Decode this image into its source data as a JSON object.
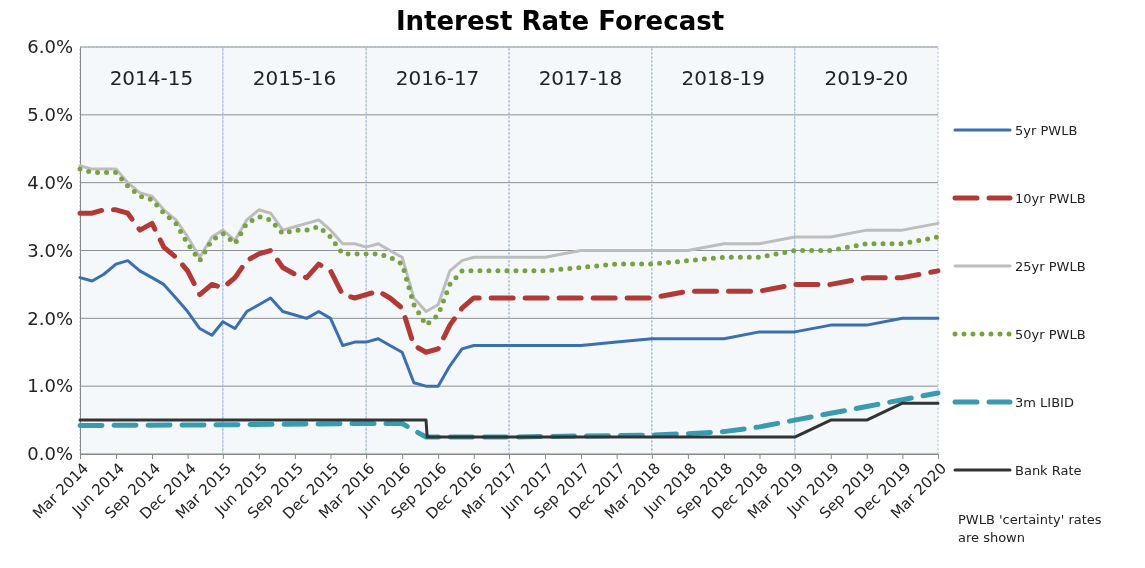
{
  "chart_data": {
    "type": "line",
    "title": "Interest Rate Forecast",
    "xlim": [
      "2014-03",
      "2020-03"
    ],
    "xticks": [
      {
        "value": "2014-03",
        "label": "Mar 2014"
      },
      {
        "value": "2014-06",
        "label": "Jun 2014"
      },
      {
        "value": "2014-09",
        "label": "Sep 2014"
      },
      {
        "value": "2014-12",
        "label": "Dec 2014"
      },
      {
        "value": "2015-03",
        "label": "Mar 2015"
      },
      {
        "value": "2015-06",
        "label": "Jun 2015"
      },
      {
        "value": "2015-09",
        "label": "Sep 2015"
      },
      {
        "value": "2015-12",
        "label": "Dec 2015"
      },
      {
        "value": "2016-03",
        "label": "Mar 2016"
      },
      {
        "value": "2016-06",
        "label": "Jun 2016"
      },
      {
        "value": "2016-09",
        "label": "Sep 2016"
      },
      {
        "value": "2016-12",
        "label": "Dec 2016"
      },
      {
        "value": "2017-03",
        "label": "Mar 2017"
      },
      {
        "value": "2017-06",
        "label": "Jun 2017"
      },
      {
        "value": "2017-09",
        "label": "Sep 2017"
      },
      {
        "value": "2017-12",
        "label": "Dec 2017"
      },
      {
        "value": "2018-03",
        "label": "Mar 2018"
      },
      {
        "value": "2018-06",
        "label": "Jun 2018"
      },
      {
        "value": "2018-09",
        "label": "Sep 2018"
      },
      {
        "value": "2018-12",
        "label": "Dec 2018"
      },
      {
        "value": "2019-03",
        "label": "Mar 2019"
      },
      {
        "value": "2019-06",
        "label": "Jun 2019"
      },
      {
        "value": "2019-09",
        "label": "Sep 2019"
      },
      {
        "value": "2019-12",
        "label": "Dec 2019"
      },
      {
        "value": "2020-03",
        "label": "Mar 2020"
      }
    ],
    "ylim": [
      0,
      6
    ],
    "yticks": [
      {
        "value": 0,
        "label": "0.0%"
      },
      {
        "value": 1,
        "label": "1.0%"
      },
      {
        "value": 2,
        "label": "2.0%"
      },
      {
        "value": 3,
        "label": "3.0%"
      },
      {
        "value": 4,
        "label": "4.0%"
      },
      {
        "value": 5,
        "label": "5.0%"
      },
      {
        "value": 6,
        "label": "6.0%"
      }
    ],
    "grid": "y",
    "legend": "right",
    "series": [
      {
        "name": "5yr PWLB",
        "color": "#3a6fb0",
        "line_style": "solid",
        "x": [
          "2014-03",
          "2014-04",
          "2014-05",
          "2014-06",
          "2014-07",
          "2014-08",
          "2014-09",
          "2014-10",
          "2014-11",
          "2014-12",
          "2015-01",
          "2015-02",
          "2015-03",
          "2015-04",
          "2015-05",
          "2015-06",
          "2015-07",
          "2015-08",
          "2015-09",
          "2015-10",
          "2015-11",
          "2015-12",
          "2016-01",
          "2016-02",
          "2016-03",
          "2016-04",
          "2016-05",
          "2016-06",
          "2016-07",
          "2016-08",
          "2016-09",
          "2016-10",
          "2016-11",
          "2016-12",
          "2017-03",
          "2017-06",
          "2017-09",
          "2017-12",
          "2018-03",
          "2018-06",
          "2018-09",
          "2018-12",
          "2019-03",
          "2019-06",
          "2019-09",
          "2019-12",
          "2020-03"
        ],
        "values": [
          2.6,
          2.55,
          2.65,
          2.8,
          2.85,
          2.7,
          2.6,
          2.5,
          2.3,
          2.1,
          1.85,
          1.75,
          1.95,
          1.85,
          2.1,
          2.2,
          2.3,
          2.1,
          2.05,
          2.0,
          2.1,
          2.0,
          1.6,
          1.65,
          1.65,
          1.7,
          1.6,
          1.5,
          1.05,
          1.0,
          1.0,
          1.3,
          1.55,
          1.6,
          1.6,
          1.6,
          1.6,
          1.65,
          1.7,
          1.7,
          1.7,
          1.8,
          1.8,
          1.9,
          1.9,
          2.0,
          2.0
        ]
      },
      {
        "name": "10yr PWLB",
        "color": "#b23a36",
        "line_style": "dashed",
        "x": [
          "2014-03",
          "2014-04",
          "2014-05",
          "2014-06",
          "2014-07",
          "2014-08",
          "2014-09",
          "2014-10",
          "2014-11",
          "2014-12",
          "2015-01",
          "2015-02",
          "2015-03",
          "2015-04",
          "2015-05",
          "2015-06",
          "2015-07",
          "2015-08",
          "2015-09",
          "2015-10",
          "2015-11",
          "2015-12",
          "2016-01",
          "2016-02",
          "2016-03",
          "2016-04",
          "2016-05",
          "2016-06",
          "2016-07",
          "2016-08",
          "2016-09",
          "2016-10",
          "2016-11",
          "2016-12",
          "2017-03",
          "2017-06",
          "2017-09",
          "2017-12",
          "2018-03",
          "2018-06",
          "2018-09",
          "2018-12",
          "2019-03",
          "2019-06",
          "2019-09",
          "2019-12",
          "2020-03"
        ],
        "values": [
          3.55,
          3.55,
          3.6,
          3.6,
          3.55,
          3.3,
          3.4,
          3.05,
          2.9,
          2.7,
          2.35,
          2.5,
          2.45,
          2.6,
          2.85,
          2.95,
          3.0,
          2.75,
          2.65,
          2.6,
          2.8,
          2.7,
          2.35,
          2.3,
          2.35,
          2.4,
          2.3,
          2.15,
          1.6,
          1.5,
          1.55,
          1.9,
          2.15,
          2.3,
          2.3,
          2.3,
          2.3,
          2.3,
          2.3,
          2.4,
          2.4,
          2.4,
          2.5,
          2.5,
          2.6,
          2.6,
          2.7
        ]
      },
      {
        "name": "25yr PWLB",
        "color": "#bdbdbd",
        "line_style": "solid",
        "x": [
          "2014-03",
          "2014-04",
          "2014-05",
          "2014-06",
          "2014-07",
          "2014-08",
          "2014-09",
          "2014-10",
          "2014-11",
          "2014-12",
          "2015-01",
          "2015-02",
          "2015-03",
          "2015-04",
          "2015-05",
          "2015-06",
          "2015-07",
          "2015-08",
          "2015-09",
          "2015-10",
          "2015-11",
          "2015-12",
          "2016-01",
          "2016-02",
          "2016-03",
          "2016-04",
          "2016-05",
          "2016-06",
          "2016-07",
          "2016-08",
          "2016-09",
          "2016-10",
          "2016-11",
          "2016-12",
          "2017-03",
          "2017-06",
          "2017-09",
          "2017-12",
          "2018-03",
          "2018-06",
          "2018-09",
          "2018-12",
          "2019-03",
          "2019-06",
          "2019-09",
          "2019-12",
          "2020-03"
        ],
        "values": [
          4.25,
          4.2,
          4.2,
          4.2,
          4.0,
          3.85,
          3.8,
          3.6,
          3.45,
          3.2,
          2.9,
          3.2,
          3.3,
          3.15,
          3.45,
          3.6,
          3.55,
          3.3,
          3.35,
          3.4,
          3.45,
          3.3,
          3.1,
          3.1,
          3.05,
          3.1,
          3.0,
          2.9,
          2.3,
          2.1,
          2.2,
          2.7,
          2.85,
          2.9,
          2.9,
          2.9,
          3.0,
          3.0,
          3.0,
          3.0,
          3.1,
          3.1,
          3.2,
          3.2,
          3.3,
          3.3,
          3.4
        ]
      },
      {
        "name": "50yr PWLB",
        "color": "#77a33f",
        "line_style": "dotted",
        "x": [
          "2014-03",
          "2014-04",
          "2014-05",
          "2014-06",
          "2014-07",
          "2014-08",
          "2014-09",
          "2014-10",
          "2014-11",
          "2014-12",
          "2015-01",
          "2015-02",
          "2015-03",
          "2015-04",
          "2015-05",
          "2015-06",
          "2015-07",
          "2015-08",
          "2015-09",
          "2015-10",
          "2015-11",
          "2015-12",
          "2016-01",
          "2016-02",
          "2016-03",
          "2016-04",
          "2016-05",
          "2016-06",
          "2016-07",
          "2016-08",
          "2016-09",
          "2016-10",
          "2016-11",
          "2016-12",
          "2017-03",
          "2017-06",
          "2017-09",
          "2017-12",
          "2018-03",
          "2018-06",
          "2018-09",
          "2018-12",
          "2019-03",
          "2019-06",
          "2019-09",
          "2019-12",
          "2020-03"
        ],
        "values": [
          4.2,
          4.15,
          4.15,
          4.15,
          3.95,
          3.8,
          3.75,
          3.55,
          3.4,
          3.1,
          2.85,
          3.15,
          3.25,
          3.1,
          3.4,
          3.5,
          3.45,
          3.25,
          3.3,
          3.3,
          3.35,
          3.2,
          2.95,
          2.95,
          2.95,
          2.95,
          2.9,
          2.8,
          2.2,
          1.9,
          2.05,
          2.5,
          2.7,
          2.7,
          2.7,
          2.7,
          2.75,
          2.8,
          2.8,
          2.85,
          2.9,
          2.9,
          3.0,
          3.0,
          3.1,
          3.1,
          3.2
        ]
      },
      {
        "name": "3m LIBID",
        "color": "#3a9bb0",
        "line_style": "dashed",
        "x": [
          "2014-03",
          "2015-03",
          "2016-03",
          "2016-06",
          "2016-07",
          "2016-08",
          "2017-03",
          "2018-03",
          "2018-06",
          "2018-09",
          "2018-12",
          "2019-03",
          "2019-06",
          "2019-09",
          "2019-12",
          "2020-03"
        ],
        "values": [
          0.42,
          0.43,
          0.45,
          0.45,
          0.35,
          0.25,
          0.25,
          0.28,
          0.3,
          0.33,
          0.4,
          0.5,
          0.6,
          0.7,
          0.8,
          0.9
        ]
      },
      {
        "name": "Bank Rate",
        "color": "#333333",
        "line_style": "solid",
        "x": [
          "2014-03",
          "2016-08-01",
          "2016-08-04",
          "2019-03",
          "2019-06",
          "2019-09",
          "2019-12",
          "2020-03"
        ],
        "values": [
          0.5,
          0.5,
          0.25,
          0.25,
          0.5,
          0.5,
          0.75,
          0.75
        ]
      }
    ],
    "bands": [
      {
        "axis": "x",
        "from": "2014-03",
        "to": "2015-03",
        "label": "2014-15",
        "color": "#9fb6d8"
      },
      {
        "axis": "x",
        "from": "2015-03",
        "to": "2016-03",
        "label": "2015-16",
        "color": "#9fb6d8"
      },
      {
        "axis": "x",
        "from": "2016-03",
        "to": "2017-03",
        "label": "2016-17",
        "color": "#9fb6d8"
      },
      {
        "axis": "x",
        "from": "2017-03",
        "to": "2018-03",
        "label": "2017-18",
        "color": "#9fb6d8"
      },
      {
        "axis": "x",
        "from": "2018-03",
        "to": "2019-03",
        "label": "2018-19",
        "color": "#9fb6d8"
      },
      {
        "axis": "x",
        "from": "2019-03",
        "to": "2020-03",
        "label": "2019-20",
        "color": "#9fb6d8"
      }
    ],
    "annotations": [
      "PWLB 'certainty' rates are shown"
    ]
  }
}
